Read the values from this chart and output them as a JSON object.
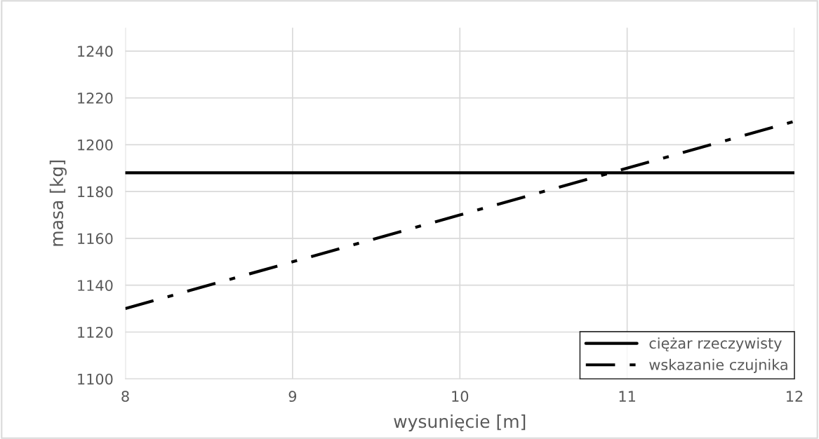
{
  "chart_data": {
    "type": "line",
    "xlabel": "wysunięcie [m]",
    "ylabel": "masa [kg]",
    "x": [
      8,
      9,
      10,
      11,
      12
    ],
    "series": [
      {
        "name": "ciężar rzeczywisty",
        "color": "#000000",
        "line_style": "solid",
        "values": [
          1188,
          1188,
          1188,
          1188,
          1188
        ]
      },
      {
        "name": "wskazanie czujnika",
        "color": "#000000",
        "line_style": "dashed",
        "values": [
          1130,
          1150,
          1170,
          1190,
          1210
        ]
      }
    ],
    "xlim": [
      8,
      12
    ],
    "xticks": [
      8,
      9,
      10,
      11,
      12
    ],
    "ylim": [
      1100,
      1250
    ],
    "yticks": [
      1100,
      1120,
      1140,
      1160,
      1180,
      1200,
      1220,
      1240
    ],
    "grid": true,
    "legend": "bottom right",
    "marker": "none"
  }
}
